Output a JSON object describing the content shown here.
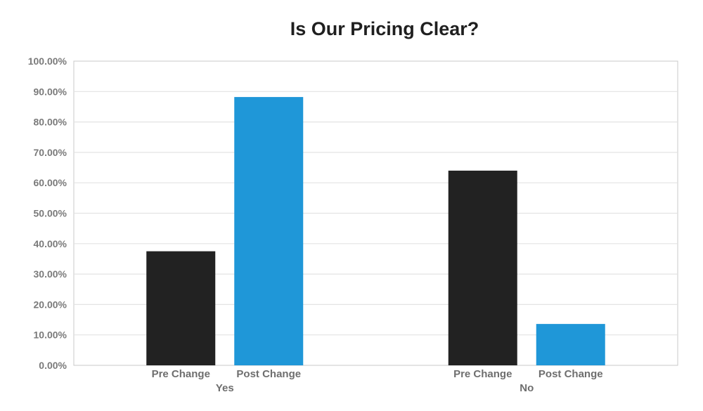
{
  "chart_data": {
    "type": "bar",
    "title": "Is Our Pricing Clear?",
    "groups": [
      "Yes",
      "No"
    ],
    "series": [
      {
        "name": "Pre Change",
        "color": "#222222",
        "values": [
          37.5,
          64.0
        ]
      },
      {
        "name": "Post Change",
        "color": "#1f97d8",
        "values": [
          88.2,
          13.6
        ]
      }
    ],
    "ylim": [
      0,
      100
    ],
    "y_ticks": [
      "0.00%",
      "10.00%",
      "20.00%",
      "30.00%",
      "40.00%",
      "50.00%",
      "60.00%",
      "70.00%",
      "80.00%",
      "90.00%",
      "100.00%"
    ],
    "grid": true,
    "legend": "none"
  }
}
